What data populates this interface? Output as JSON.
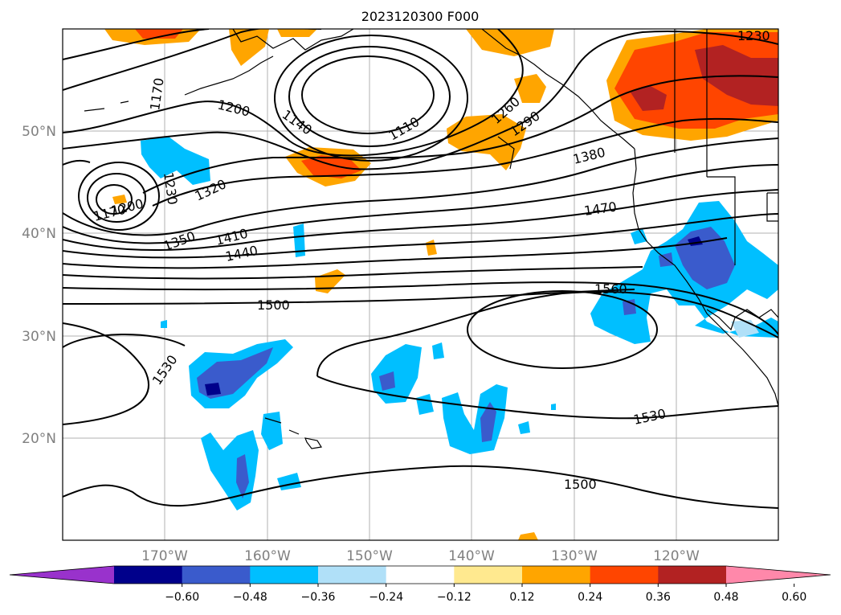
{
  "title": "2023120300 F000",
  "map": {
    "lon_range": [
      -180,
      -110
    ],
    "lat_range": [
      10,
      60
    ],
    "lon_ticks": [
      "170°W",
      "160°W",
      "150°W",
      "140°W",
      "130°W",
      "120°W"
    ],
    "lat_ticks": [
      "50°N",
      "40°N",
      "30°N",
      "20°N"
    ],
    "gridlines": true,
    "coastlines": true
  },
  "contours": {
    "color": "#000000",
    "labels": [
      "1230",
      "1170",
      "1200",
      "1140",
      "1110",
      "1260",
      "1290",
      "1380",
      "1230",
      "1320",
      "1170",
      "1200",
      "1350",
      "1410",
      "1440",
      "1470",
      "1560",
      "1500",
      "1530",
      "1530",
      "1500"
    ]
  },
  "colorbar": {
    "ticks": [
      "−0.60",
      "−0.48",
      "−0.36",
      "−0.24",
      "−0.12",
      "0.12",
      "0.24",
      "0.36",
      "0.48",
      "0.60"
    ],
    "colors": [
      "#9932cc",
      "#00008b",
      "#3a5bcc",
      "#00bfff",
      "#b0e0f8",
      "#ffffff",
      "#ffe98f",
      "#ffa500",
      "#ff4500",
      "#b22222",
      "#ff88aa"
    ]
  }
}
